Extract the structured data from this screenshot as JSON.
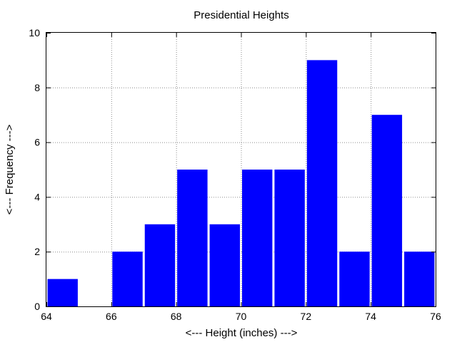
{
  "chart_data": {
    "type": "bar",
    "title": "Presidential Heights",
    "xlabel": "<--- Height (inches) --->",
    "ylabel": "<--- Frequency --->",
    "xlim": [
      64,
      76
    ],
    "ylim": [
      0,
      10
    ],
    "xticks": [
      64,
      66,
      68,
      70,
      72,
      74,
      76
    ],
    "yticks": [
      0,
      2,
      4,
      6,
      8,
      10
    ],
    "grid": true,
    "bar_color": "#0000ff",
    "bins": [
      {
        "x0": 64,
        "x1": 65,
        "value": 1
      },
      {
        "x0": 65,
        "x1": 66,
        "value": 0
      },
      {
        "x0": 66,
        "x1": 67,
        "value": 2
      },
      {
        "x0": 67,
        "x1": 68,
        "value": 3
      },
      {
        "x0": 68,
        "x1": 69,
        "value": 5
      },
      {
        "x0": 69,
        "x1": 70,
        "value": 3
      },
      {
        "x0": 70,
        "x1": 71,
        "value": 5
      },
      {
        "x0": 71,
        "x1": 72,
        "value": 5
      },
      {
        "x0": 72,
        "x1": 73,
        "value": 9
      },
      {
        "x0": 73,
        "x1": 74,
        "value": 2
      },
      {
        "x0": 74,
        "x1": 75,
        "value": 7
      },
      {
        "x0": 75,
        "x1": 76,
        "value": 2
      }
    ]
  }
}
